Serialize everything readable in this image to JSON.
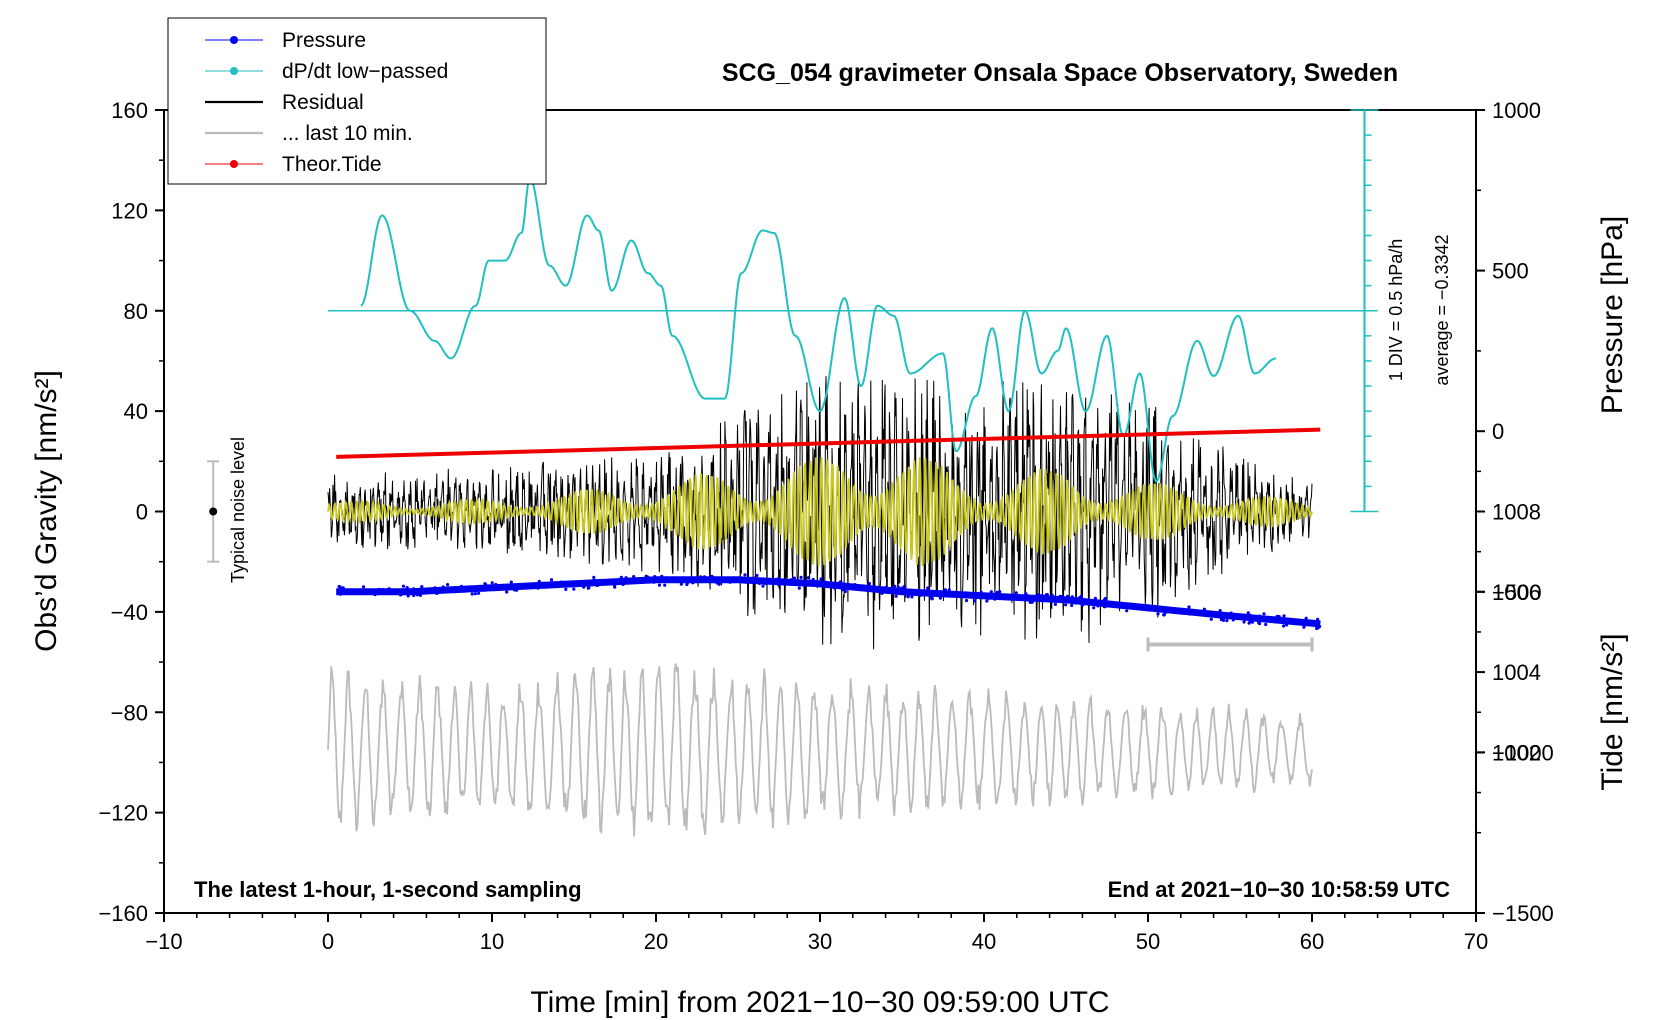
{
  "chart_data": {
    "type": "line",
    "title": "SCG_054 gravimeter Onsala Space Observatory, Sweden",
    "footer_left": "The latest 1-hour, 1-second sampling",
    "footer_right": "End at 2021−10−30 10:58:59 UTC",
    "xlabel": "Time [min] from 2021−10−30 09:59:00 UTC",
    "ylabel_left": "Obs’d Gravity [nm/s²]",
    "ylabel_right_top": "Pressure [hPa]",
    "ylabel_right_bottom": "Tide [nm/s²]",
    "xlim": [
      -10,
      70
    ],
    "ylim": [
      -160,
      160
    ],
    "xticks": [
      -10,
      0,
      10,
      20,
      30,
      40,
      50,
      60,
      70
    ],
    "xtick_labels": [
      "−10",
      "0",
      "10",
      "20",
      "30",
      "40",
      "50",
      "60",
      "70"
    ],
    "yticks": [
      -160,
      -120,
      -80,
      -40,
      0,
      40,
      80,
      120,
      160
    ],
    "ytick_labels": [
      "−160",
      "−120",
      "−80",
      "−40",
      "0",
      "40",
      "80",
      "120",
      "160"
    ],
    "pressure_axis": {
      "range": [
        998,
        1018
      ],
      "ticks": [
        1002,
        1004,
        1006,
        1008
      ],
      "tick_labels": [
        "1002",
        "1004",
        "1006",
        "1008"
      ]
    },
    "tide_axis": {
      "range": [
        -1500,
        1000
      ],
      "ticks": [
        -1500,
        -1000,
        -500,
        0,
        500,
        1000
      ],
      "tick_labels": [
        "−1500",
        "−1000",
        "−500",
        "0",
        "500",
        "1000"
      ]
    },
    "dpdt_scale": {
      "label": "1 DIV = 0.5 hPa/h",
      "average_label": "average = −0.3342",
      "baseline_gravity": 80,
      "top_gravity": 160,
      "bottom_gravity": 0,
      "divisions": 16
    },
    "noise_level": {
      "label": "Typical noise level",
      "x": -7,
      "center": 0,
      "half_range": 20
    },
    "last10_bar": {
      "x": [
        50,
        60
      ],
      "y": -53
    },
    "legend": [
      {
        "label": "Pressure",
        "color": "#0000ee",
        "style": "line-dot"
      },
      {
        "label": "dP/dt low−passed",
        "color": "#20c0c0",
        "style": "line-dot"
      },
      {
        "label": "Residual",
        "color": "#000000",
        "style": "line"
      },
      {
        "label": "... last 10 min.",
        "color": "#bbbbbb",
        "style": "line"
      },
      {
        "label": "Theor.Tide",
        "color": "#ee0000",
        "style": "line-dot"
      }
    ],
    "series": [
      {
        "name": "Pressure",
        "unit": "hPa",
        "color": "#0000ee",
        "x": [
          0.5,
          5,
          10,
          15,
          20,
          25,
          30,
          35,
          40,
          45,
          50,
          55,
          60.5
        ],
        "values": [
          1006.0,
          1006.0,
          1006.1,
          1006.2,
          1006.3,
          1006.3,
          1006.2,
          1006.0,
          1005.9,
          1005.8,
          1005.6,
          1005.4,
          1005.2
        ]
      },
      {
        "name": "dP/dt low-passed",
        "unit": "nm/s² (plot scale)",
        "color": "#20c0c0",
        "x": [
          2,
          3.3,
          5,
          6.5,
          7.5,
          9,
          9.8,
          10.8,
          11.8,
          12.3,
          13.5,
          14.5,
          15.8,
          16.5,
          17.3,
          18.5,
          19.5,
          20.3,
          21,
          23,
          24.2,
          25.2,
          26.5,
          27.2,
          28.5,
          30,
          31.5,
          32.5,
          33.5,
          34.5,
          35.5,
          37.5,
          38.3,
          39.5,
          40.5,
          41.5,
          42.5,
          43.5,
          44.5,
          45,
          46.2,
          47.5,
          48.5,
          49.5,
          50.5,
          51.5,
          53,
          54,
          55.5,
          56.5,
          57.8
        ],
        "values": [
          82,
          118,
          80,
          68,
          61,
          82,
          100,
          100,
          111,
          133,
          98,
          90,
          118,
          112,
          88,
          108,
          95,
          90,
          70,
          45,
          45,
          95,
          112,
          111,
          70,
          40,
          85,
          50,
          82,
          78,
          55,
          63,
          24,
          46,
          73,
          40,
          80,
          55,
          64,
          73,
          40,
          70,
          30,
          55,
          12,
          38,
          68,
          54,
          78,
          55,
          61
        ]
      },
      {
        "name": "Residual",
        "unit": "nm/s²",
        "color": "#000000",
        "envelope_x": [
          0,
          10,
          20,
          25,
          30,
          33,
          35,
          40,
          45,
          50,
          55,
          60
        ],
        "envelope_amplitude": [
          15,
          18,
          25,
          40,
          55,
          62,
          58,
          55,
          60,
          45,
          25,
          12
        ]
      },
      {
        "name": "Residual low-passed",
        "unit": "nm/s²",
        "color": "#c8c820",
        "envelope_x": [
          0,
          10,
          20,
          25,
          30,
          33,
          35,
          40,
          45,
          50,
          55,
          60
        ],
        "envelope_amplitude": [
          4,
          5,
          12,
          18,
          22,
          32,
          25,
          15,
          18,
          12,
          8,
          4
        ]
      },
      {
        "name": "... last 10 min.",
        "unit": "nm/s²",
        "color": "#bbbbbb",
        "baseline": -95,
        "envelope_x": [
          0,
          10,
          20,
          30,
          40,
          50,
          60
        ],
        "envelope_amplitude": [
          35,
          28,
          40,
          30,
          25,
          22,
          15
        ]
      },
      {
        "name": "Theor.Tide",
        "unit": "nm/s²",
        "color": "#ee0000",
        "x": [
          0.5,
          60.5
        ],
        "values": [
          -80,
          5
        ]
      }
    ]
  }
}
